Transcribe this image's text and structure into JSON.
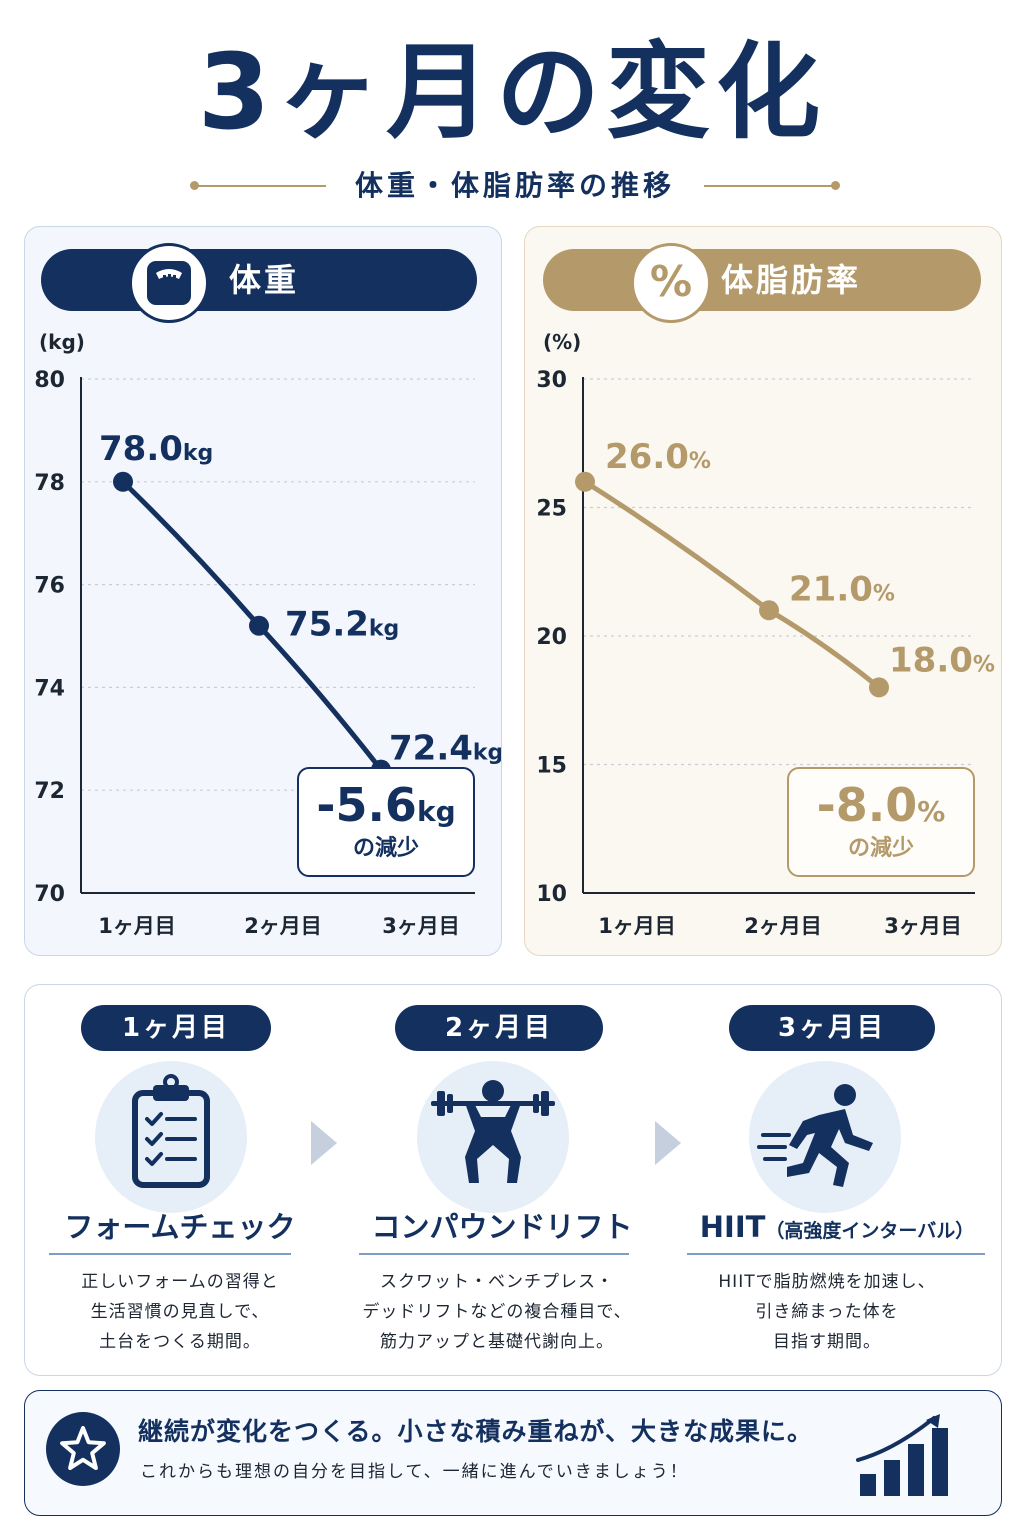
{
  "title": "3ヶ月の変化",
  "subtitle": "体重・体脂肪率の推移",
  "colors": {
    "navy": "#13305e",
    "gold": "#b49a6a",
    "navy_light": "#e6eef8"
  },
  "chart_data": [
    {
      "type": "line",
      "title": "体重",
      "icon": "scale-icon",
      "ylabel": "(kg)",
      "ylim": [
        70,
        80
      ],
      "yticks": [
        70,
        72,
        74,
        76,
        78,
        80
      ],
      "categories": [
        "1ヶ月目",
        "2ヶ月目",
        "3ヶ月目"
      ],
      "series": [
        {
          "values": [
            78.0,
            75.2,
            72.4
          ]
        }
      ],
      "data_labels": [
        {
          "value": "78.0",
          "unit": "kg"
        },
        {
          "value": "75.2",
          "unit": "kg"
        },
        {
          "value": "72.4",
          "unit": "kg"
        }
      ],
      "summary": {
        "value": "-5.6",
        "unit": "kg",
        "label": "の減少"
      },
      "grid": "dotted",
      "color": "#13305e"
    },
    {
      "type": "line",
      "title": "体脂肪率",
      "icon": "percent-icon",
      "ylabel": "(%)",
      "ylim": [
        10,
        30
      ],
      "yticks": [
        10,
        15,
        20,
        25,
        30
      ],
      "categories": [
        "1ヶ月目",
        "2ヶ月目",
        "3ヶ月目"
      ],
      "series": [
        {
          "values": [
            26.0,
            21.0,
            18.0
          ]
        }
      ],
      "data_labels": [
        {
          "value": "26.0",
          "unit": "%"
        },
        {
          "value": "21.0",
          "unit": "%"
        },
        {
          "value": "18.0",
          "unit": "%"
        }
      ],
      "summary": {
        "value": "-8.0",
        "unit": "%",
        "label": "の減少"
      },
      "grid": "dotted",
      "color": "#b49a6a"
    }
  ],
  "steps": [
    {
      "month": "1ヶ月目",
      "icon": "clipboard-checklist-icon",
      "title": "フォームチェック",
      "title_note": "",
      "desc": [
        "正しいフォームの習得と",
        "生活習慣の見直しで、",
        "土台をつくる期間。"
      ]
    },
    {
      "month": "2ヶ月目",
      "icon": "barbell-squat-icon",
      "title": "コンパウンドリフト",
      "title_note": "",
      "desc": [
        "スクワット・ベンチプレス・",
        "デッドリフトなどの複合種目で、",
        "筋力アップと基礎代謝向上。"
      ]
    },
    {
      "month": "3ヶ月目",
      "icon": "running-person-icon",
      "title": "HIIT",
      "title_note": "（高強度インターバル）",
      "desc": [
        "HIITで脂肪燃焼を加速し、",
        "引き締まった体を",
        "目指す期間。"
      ]
    }
  ],
  "footer": {
    "icon": "star-icon",
    "main": "継続が変化をつくる。小さな積み重ねが、大きな成果に。",
    "sub": "これからも理想の自分を目指して、一緒に進んでいきましょう！",
    "chart_icon": "growth-bar-chart-icon"
  }
}
